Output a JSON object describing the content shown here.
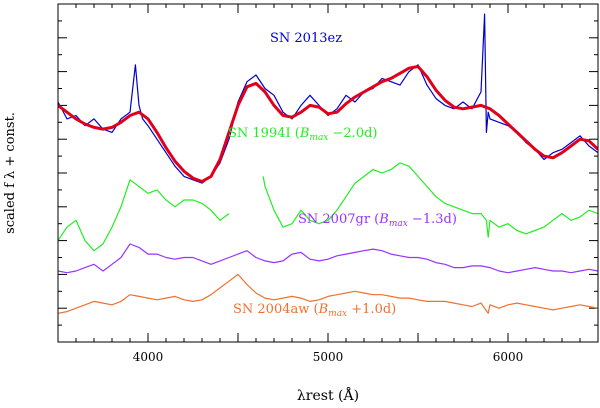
{
  "chart_data": {
    "type": "line",
    "title": "",
    "xlabel": "λrest (Å)",
    "ylabel": "scaled f λ + const.",
    "xlim": [
      3500,
      6500
    ],
    "ylim": [
      0,
      10
    ],
    "x_ticks": [
      4000,
      5000,
      6000
    ],
    "x_tick_labels": [
      "4000",
      "5000",
      "6000"
    ],
    "legend": "none (labels placed next to each spectrum)",
    "series": [
      {
        "name": "SN 2013ez",
        "label": "SN 2013ez",
        "color": "#0000cc",
        "x": [
          3500,
          3550,
          3600,
          3650,
          3700,
          3750,
          3800,
          3850,
          3900,
          3930,
          3950,
          3970,
          4000,
          4050,
          4100,
          4150,
          4200,
          4250,
          4300,
          4350,
          4400,
          4450,
          4500,
          4550,
          4600,
          4650,
          4700,
          4750,
          4800,
          4850,
          4900,
          4950,
          5000,
          5050,
          5100,
          5150,
          5200,
          5250,
          5300,
          5350,
          5400,
          5450,
          5500,
          5550,
          5600,
          5650,
          5700,
          5750,
          5800,
          5850,
          5870,
          5880,
          5890,
          5900,
          5950,
          6000,
          6050,
          6100,
          6150,
          6200,
          6250,
          6300,
          6350,
          6400,
          6450,
          6500
        ],
        "y": [
          7.1,
          6.6,
          6.7,
          6.4,
          6.6,
          6.3,
          6.2,
          6.6,
          6.8,
          8.2,
          7.0,
          6.6,
          6.4,
          6.0,
          5.6,
          5.2,
          4.9,
          4.8,
          4.7,
          4.9,
          5.3,
          6.0,
          7.1,
          7.7,
          7.9,
          7.5,
          7.3,
          6.8,
          6.6,
          7.0,
          7.3,
          7.0,
          6.7,
          6.9,
          7.3,
          7.1,
          7.4,
          7.5,
          7.8,
          7.7,
          7.6,
          8.0,
          8.2,
          7.6,
          7.2,
          7.0,
          6.9,
          7.1,
          6.9,
          7.4,
          9.7,
          6.2,
          6.8,
          6.6,
          6.5,
          6.4,
          6.2,
          5.9,
          5.7,
          5.4,
          5.6,
          5.7,
          5.9,
          6.1,
          5.8,
          5.6
        ]
      },
      {
        "name": "SN 2013ez smoothed fit",
        "label": "",
        "color": "#e0001b",
        "x": [
          3500,
          3550,
          3600,
          3650,
          3700,
          3750,
          3800,
          3850,
          3900,
          3950,
          4000,
          4050,
          4100,
          4150,
          4200,
          4250,
          4300,
          4350,
          4400,
          4450,
          4500,
          4550,
          4600,
          4650,
          4700,
          4750,
          4800,
          4850,
          4900,
          4950,
          5000,
          5050,
          5100,
          5150,
          5200,
          5250,
          5300,
          5350,
          5400,
          5450,
          5500,
          5550,
          5600,
          5650,
          5700,
          5750,
          5800,
          5850,
          5900,
          5950,
          6000,
          6050,
          6100,
          6150,
          6200,
          6250,
          6300,
          6350,
          6400,
          6450,
          6500
        ],
        "y": [
          7.0,
          6.8,
          6.6,
          6.45,
          6.35,
          6.3,
          6.35,
          6.5,
          6.7,
          6.8,
          6.6,
          6.2,
          5.75,
          5.35,
          5.05,
          4.85,
          4.75,
          4.9,
          5.4,
          6.2,
          7.0,
          7.55,
          7.65,
          7.4,
          7.0,
          6.7,
          6.65,
          6.8,
          7.0,
          6.95,
          6.75,
          6.8,
          7.05,
          7.25,
          7.4,
          7.55,
          7.7,
          7.8,
          7.95,
          8.1,
          8.15,
          7.85,
          7.45,
          7.15,
          6.95,
          6.9,
          6.95,
          7.0,
          6.9,
          6.7,
          6.45,
          6.2,
          5.95,
          5.7,
          5.5,
          5.45,
          5.6,
          5.8,
          6.0,
          5.95,
          5.7
        ]
      },
      {
        "name": "SN 1994I",
        "label": "SN 1994I (B max −2.0d)",
        "label_parts": {
          "name": "SN 1994I (",
          "b": "B",
          "sub": "max",
          "epoch": " −2.0d)"
        },
        "color": "#22ee22",
        "x": [
          3500,
          3550,
          3600,
          3650,
          3700,
          3750,
          3800,
          3850,
          3900,
          3950,
          4000,
          4050,
          4100,
          4150,
          4200,
          4250,
          4300,
          4350,
          4400,
          4450,
          null,
          4640,
          4650,
          4700,
          4750,
          4800,
          4850,
          4900,
          4950,
          5000,
          5050,
          5100,
          5150,
          5200,
          5250,
          5300,
          5350,
          5400,
          5450,
          5500,
          5550,
          5600,
          5650,
          5700,
          5750,
          5800,
          5850,
          5880,
          5890,
          5900,
          5950,
          6000,
          6050,
          6100,
          6150,
          6200,
          6250,
          6300,
          6350,
          6400,
          6450,
          6500
        ],
        "y": [
          3.0,
          3.4,
          3.6,
          3.0,
          2.7,
          2.9,
          3.4,
          4.0,
          4.8,
          4.6,
          4.4,
          4.5,
          4.2,
          4.0,
          4.2,
          4.2,
          4.1,
          3.9,
          3.6,
          3.8,
          null,
          4.9,
          4.6,
          3.9,
          3.4,
          3.5,
          3.9,
          3.6,
          3.5,
          3.6,
          3.9,
          4.3,
          4.7,
          4.9,
          5.1,
          5.0,
          5.1,
          5.3,
          5.2,
          4.9,
          4.6,
          4.3,
          4.1,
          4.0,
          3.9,
          3.8,
          3.8,
          3.6,
          3.1,
          3.6,
          3.4,
          3.5,
          3.3,
          3.2,
          3.3,
          3.4,
          3.6,
          3.8,
          3.6,
          3.7,
          3.9,
          3.8
        ]
      },
      {
        "name": "SN 2007gr",
        "label": "SN 2007gr (B max −1.3d)",
        "label_parts": {
          "name": "SN 2007gr (",
          "b": "B",
          "sub": "max",
          "epoch": " −1.3d)"
        },
        "color": "#9a32ff",
        "x": [
          3500,
          3550,
          3600,
          3650,
          3700,
          3750,
          3800,
          3850,
          3900,
          3950,
          4000,
          4050,
          4100,
          4150,
          4200,
          4250,
          4300,
          4350,
          4400,
          4450,
          4500,
          4550,
          4600,
          4650,
          4700,
          4750,
          4800,
          4850,
          4900,
          4950,
          5000,
          5050,
          5100,
          5150,
          5200,
          5250,
          5300,
          5350,
          5400,
          5450,
          5500,
          5550,
          5600,
          5650,
          5700,
          5750,
          5800,
          5850,
          5900,
          5950,
          6000,
          6050,
          6100,
          6150,
          6200,
          6250,
          6300,
          6350,
          6400,
          6450,
          6500
        ],
        "y": [
          2.1,
          2.05,
          2.1,
          2.2,
          2.3,
          2.1,
          2.3,
          2.5,
          2.9,
          2.8,
          2.6,
          2.6,
          2.5,
          2.45,
          2.5,
          2.5,
          2.4,
          2.3,
          2.4,
          2.5,
          2.6,
          2.7,
          2.5,
          2.4,
          2.35,
          2.4,
          2.6,
          2.65,
          2.45,
          2.4,
          2.45,
          2.55,
          2.6,
          2.65,
          2.7,
          2.75,
          2.7,
          2.6,
          2.55,
          2.5,
          2.5,
          2.45,
          2.35,
          2.3,
          2.2,
          2.2,
          2.25,
          2.25,
          2.2,
          2.1,
          2.05,
          2.1,
          2.15,
          2.2,
          2.15,
          2.1,
          2.1,
          2.05,
          2.1,
          2.15,
          2.1
        ]
      },
      {
        "name": "SN 2004aw",
        "label": "SN 2004aw (B max +1.0d)",
        "label_parts": {
          "name": "SN 2004aw (",
          "b": "B",
          "sub": "max",
          "epoch": " +1.0d)"
        },
        "color": "#f07030",
        "x": [
          3500,
          3550,
          3600,
          3650,
          3700,
          3750,
          3800,
          3850,
          3900,
          3950,
          4000,
          4050,
          4100,
          4150,
          4200,
          4250,
          4300,
          4350,
          4400,
          4450,
          4500,
          4550,
          4600,
          4650,
          4700,
          4750,
          4800,
          4850,
          4900,
          4950,
          5000,
          5050,
          5100,
          5150,
          5200,
          5250,
          5300,
          5350,
          5400,
          5450,
          5500,
          5550,
          5600,
          5650,
          5700,
          5750,
          5800,
          5850,
          5890,
          5900,
          5950,
          6000,
          6050,
          6100,
          6150,
          6200,
          6250,
          6300,
          6350,
          6400,
          6450,
          6500
        ],
        "y": [
          0.85,
          0.9,
          1.0,
          1.1,
          1.2,
          1.15,
          1.1,
          1.2,
          1.4,
          1.35,
          1.3,
          1.25,
          1.3,
          1.35,
          1.25,
          1.2,
          1.25,
          1.4,
          1.6,
          1.8,
          2.0,
          1.7,
          1.45,
          1.3,
          1.25,
          1.3,
          1.35,
          1.3,
          1.2,
          1.25,
          1.35,
          1.4,
          1.45,
          1.5,
          1.45,
          1.4,
          1.4,
          1.35,
          1.3,
          1.3,
          1.25,
          1.2,
          1.2,
          1.2,
          1.15,
          1.1,
          1.05,
          1.15,
          0.85,
          1.1,
          1.0,
          1.1,
          1.15,
          1.1,
          1.05,
          1.0,
          0.95,
          1.0,
          1.05,
          1.1,
          1.05,
          1.0
        ]
      }
    ]
  }
}
